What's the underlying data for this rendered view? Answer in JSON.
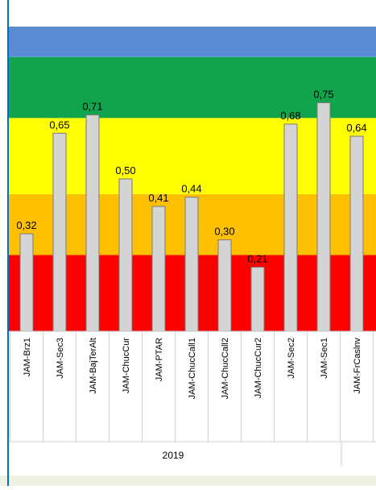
{
  "colors": {
    "band_blue": "#5b8bd2",
    "band_green": "#10a54c",
    "band_yellow": "#ffff00",
    "band_orange": "#ffc000",
    "band_red": "#ff0000",
    "bar_fill": "#d4d4d4",
    "bar_stroke": "#7a7a7a",
    "frame_line": "#0070c0",
    "footer_bg": "#eef2e4"
  },
  "chart_data": {
    "type": "bar",
    "categories": [
      "JAM-Brz1",
      "JAM-Sec3",
      "JAM-BajTerAlt",
      "JAM-ChucCur",
      "JAM-PTAR",
      "JAM-ChucCall1",
      "JAM-ChucCall2",
      "JAM-ChucCur2",
      "JAM-Sec2",
      "JAM-Sec1",
      "JAM-FrCaslnv"
    ],
    "values": [
      0.32,
      0.65,
      0.71,
      0.5,
      0.41,
      0.44,
      0.3,
      0.21,
      0.68,
      0.75,
      0.64
    ],
    "value_labels": [
      "0,32",
      "0,65",
      "0,71",
      "0,50",
      "0,41",
      "0,44",
      "0,30",
      "0,21",
      "0,68",
      "0,75",
      "0,64"
    ],
    "ylim": [
      0,
      1
    ],
    "bands": [
      {
        "from": 0.0,
        "to": 0.25,
        "color": "#ff0000"
      },
      {
        "from": 0.25,
        "to": 0.45,
        "color": "#ffc000"
      },
      {
        "from": 0.45,
        "to": 0.7,
        "color": "#ffff00"
      },
      {
        "from": 0.7,
        "to": 0.9,
        "color": "#10a54c"
      },
      {
        "from": 0.9,
        "to": 1.0,
        "color": "#5b8bd2"
      }
    ],
    "group_label": "2019",
    "grid": false,
    "legend": "none"
  }
}
